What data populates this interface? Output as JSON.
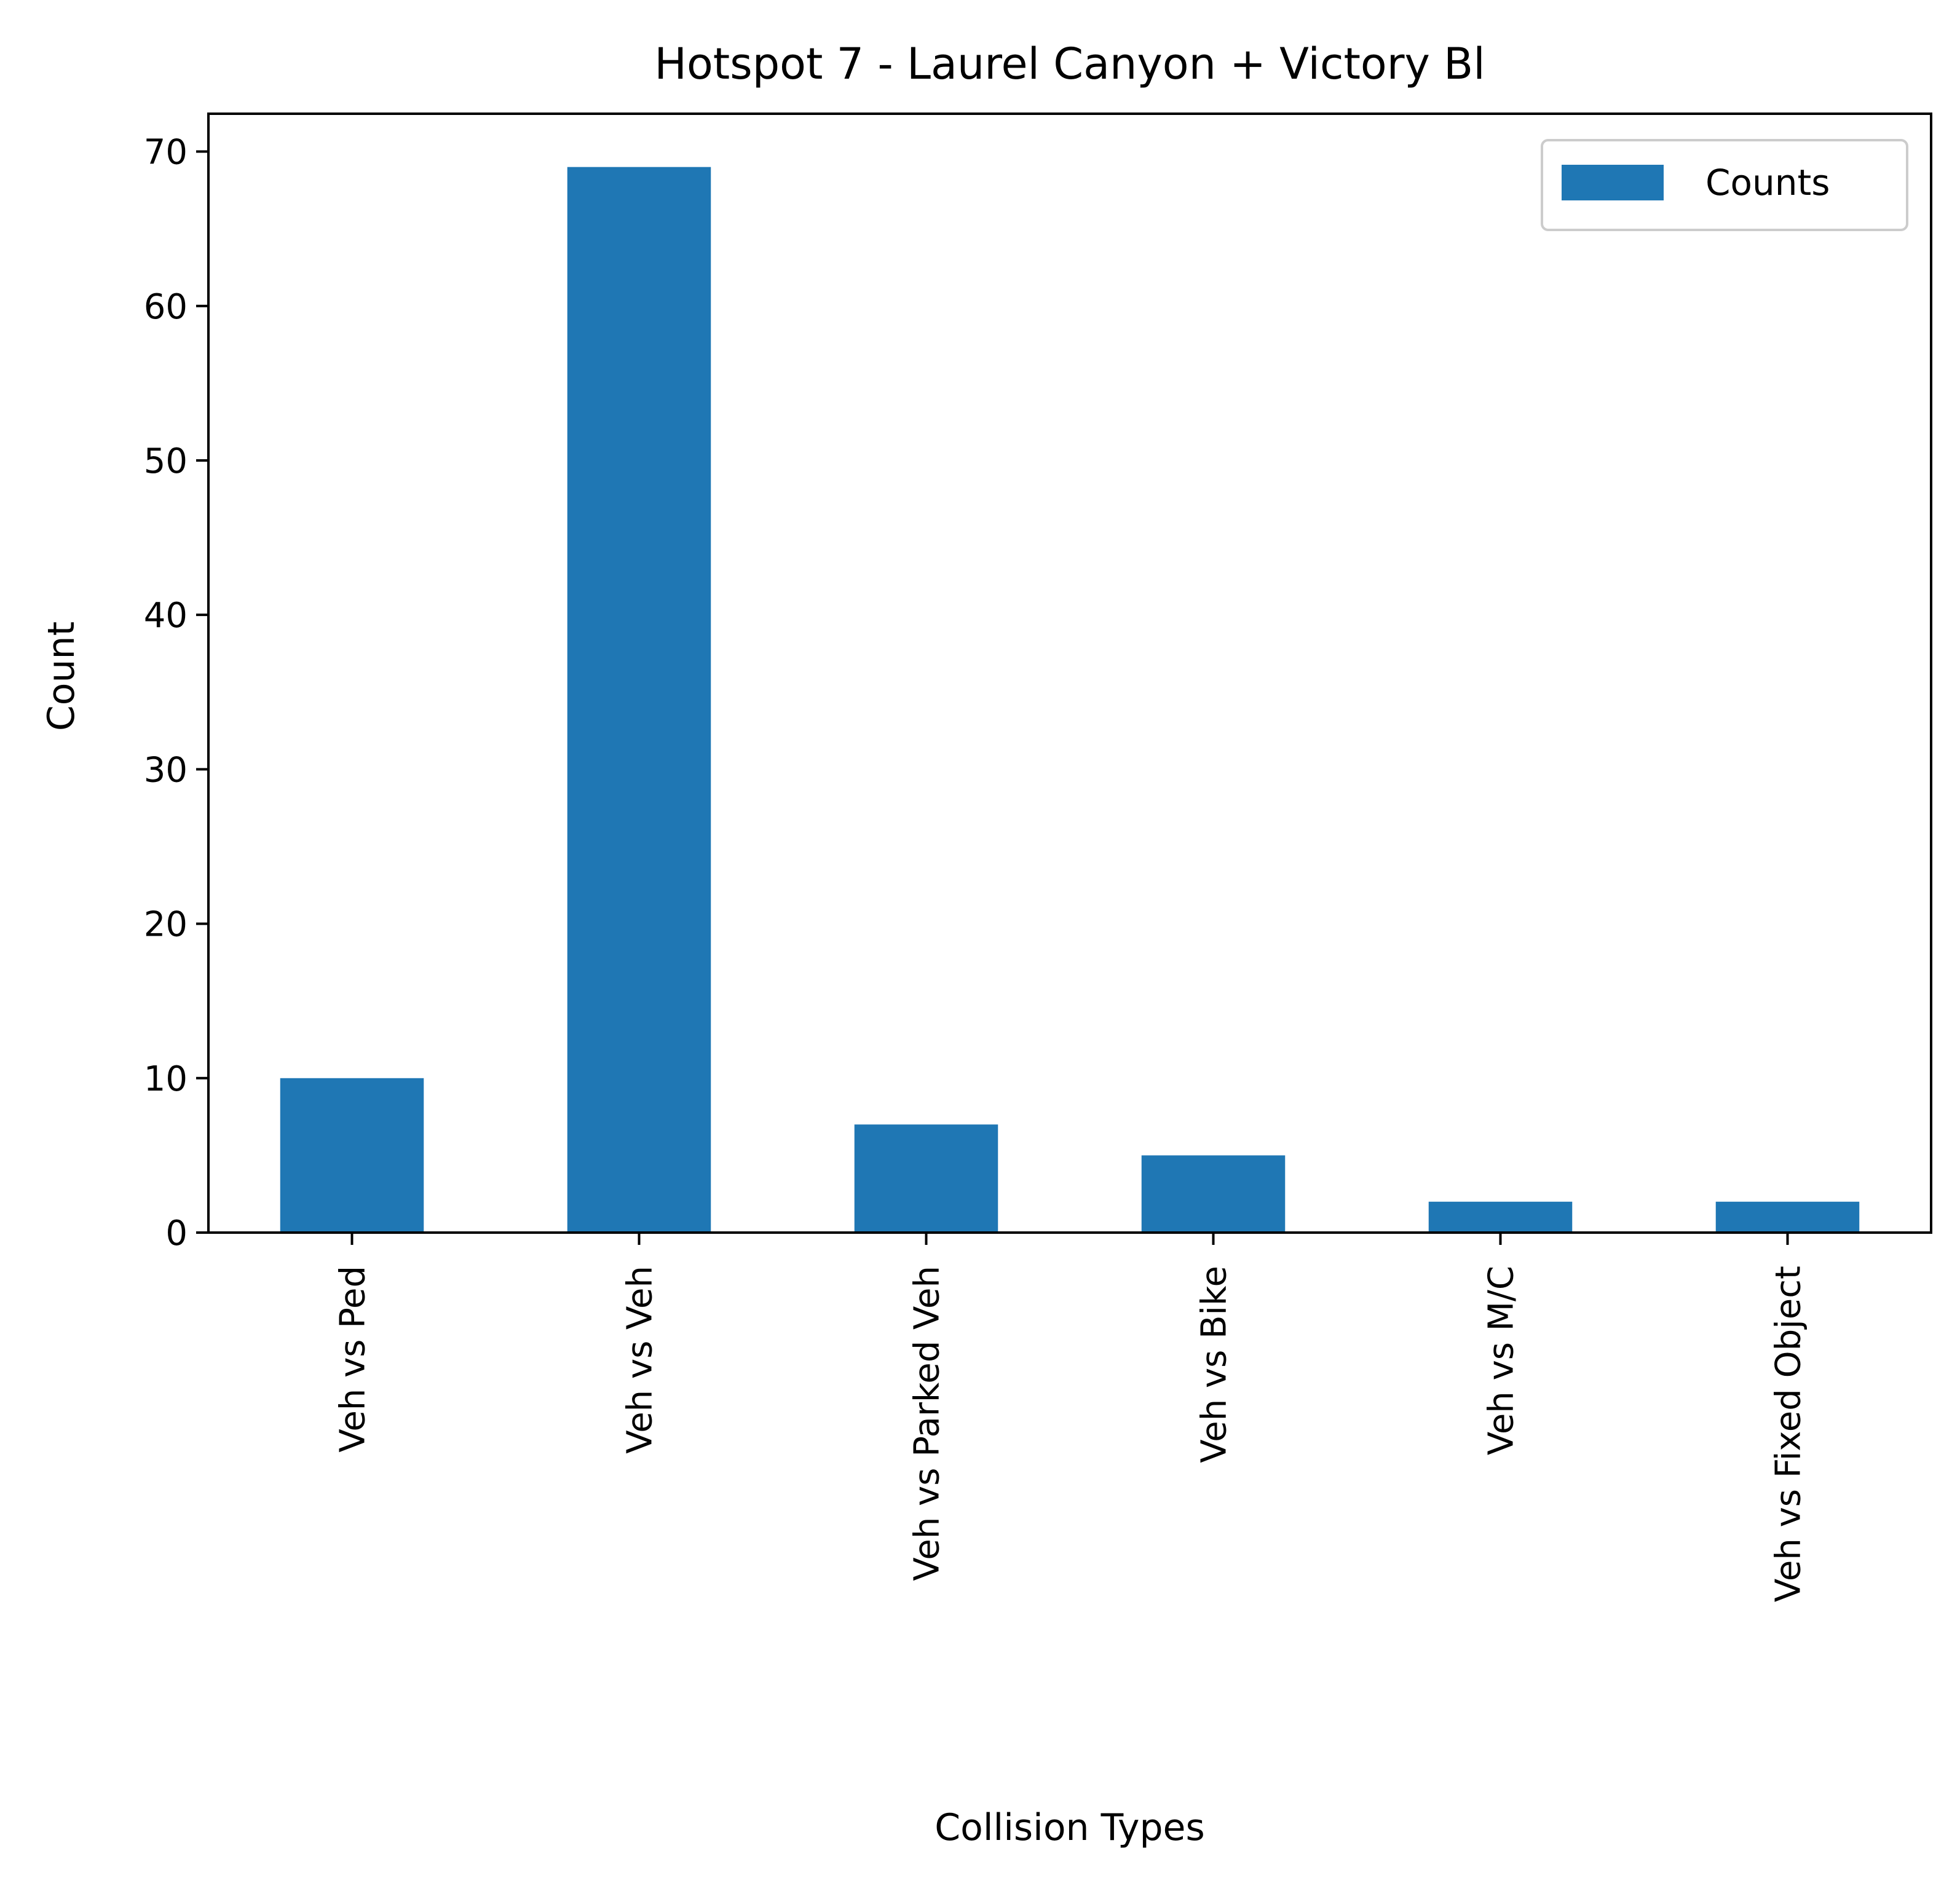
{
  "chart_data": {
    "type": "bar",
    "title": "Hotspot 7 - Laurel Canyon + Victory Bl",
    "xlabel": "Collision Types",
    "ylabel": "Count",
    "categories": [
      "Veh vs Ped",
      "Veh vs Veh",
      "Veh vs Parked Veh",
      "Veh vs Bike",
      "Veh vs M/C",
      "Veh vs Fixed Object"
    ],
    "series": [
      {
        "name": "Counts",
        "values": [
          10,
          69,
          7,
          5,
          2,
          2
        ],
        "color": "#1f77b4"
      }
    ],
    "ylim": [
      0,
      72.45
    ],
    "yticks": [
      0,
      10,
      20,
      30,
      40,
      50,
      60,
      70
    ],
    "grid": false,
    "legend_position": "top-right"
  }
}
